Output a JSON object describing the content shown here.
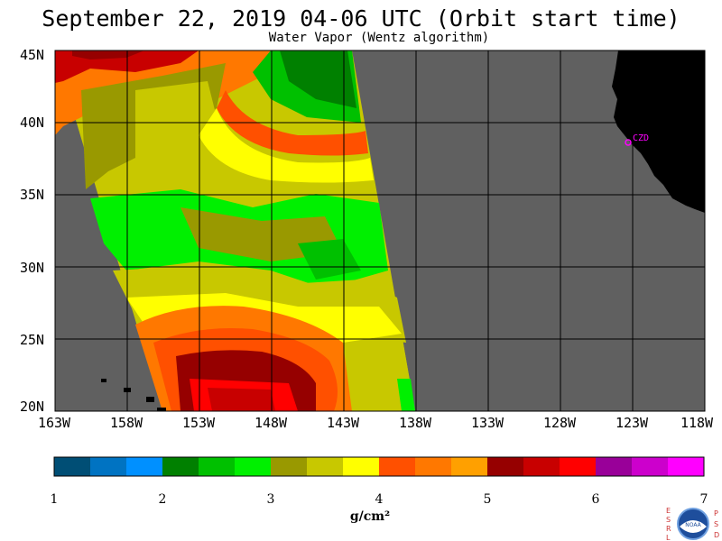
{
  "title": "September 22, 2019  04-06 UTC  (Orbit start time)",
  "subtitle": "Water Vapor (Wentz algorithm)",
  "map": {
    "lat_labels": [
      "45N",
      "40N",
      "35N",
      "30N",
      "25N",
      "20N"
    ],
    "lon_labels": [
      "163W",
      "158W",
      "153W",
      "148W",
      "143W",
      "138W",
      "133W",
      "128W",
      "123W",
      "118W"
    ],
    "lat_range": [
      20,
      45
    ],
    "lon_range": [
      -163,
      -118
    ],
    "station_label": "CZD",
    "colors": {
      "no_data": "#606060",
      "land": "#000000",
      "station": "#ff00ff",
      "grid": "#000000"
    }
  },
  "colorbar": {
    "ticks": [
      "1",
      "2",
      "3",
      "4",
      "5",
      "6",
      "7"
    ],
    "unit": "g/cm²",
    "range": [
      1,
      7
    ],
    "colors": [
      "#004e75",
      "#0073c2",
      "#0090ff",
      "#008000",
      "#00c000",
      "#00f000",
      "#999900",
      "#c8c800",
      "#ffff00",
      "#ff5000",
      "#ff7800",
      "#ffa000",
      "#960000",
      "#c80000",
      "#ff0000",
      "#990099",
      "#cc00cc",
      "#ff00ff"
    ]
  },
  "logo": {
    "left_letters": [
      "E",
      "S",
      "R",
      "L"
    ],
    "right_letters": [
      "P",
      "S",
      "D"
    ],
    "label": "NOAA"
  }
}
